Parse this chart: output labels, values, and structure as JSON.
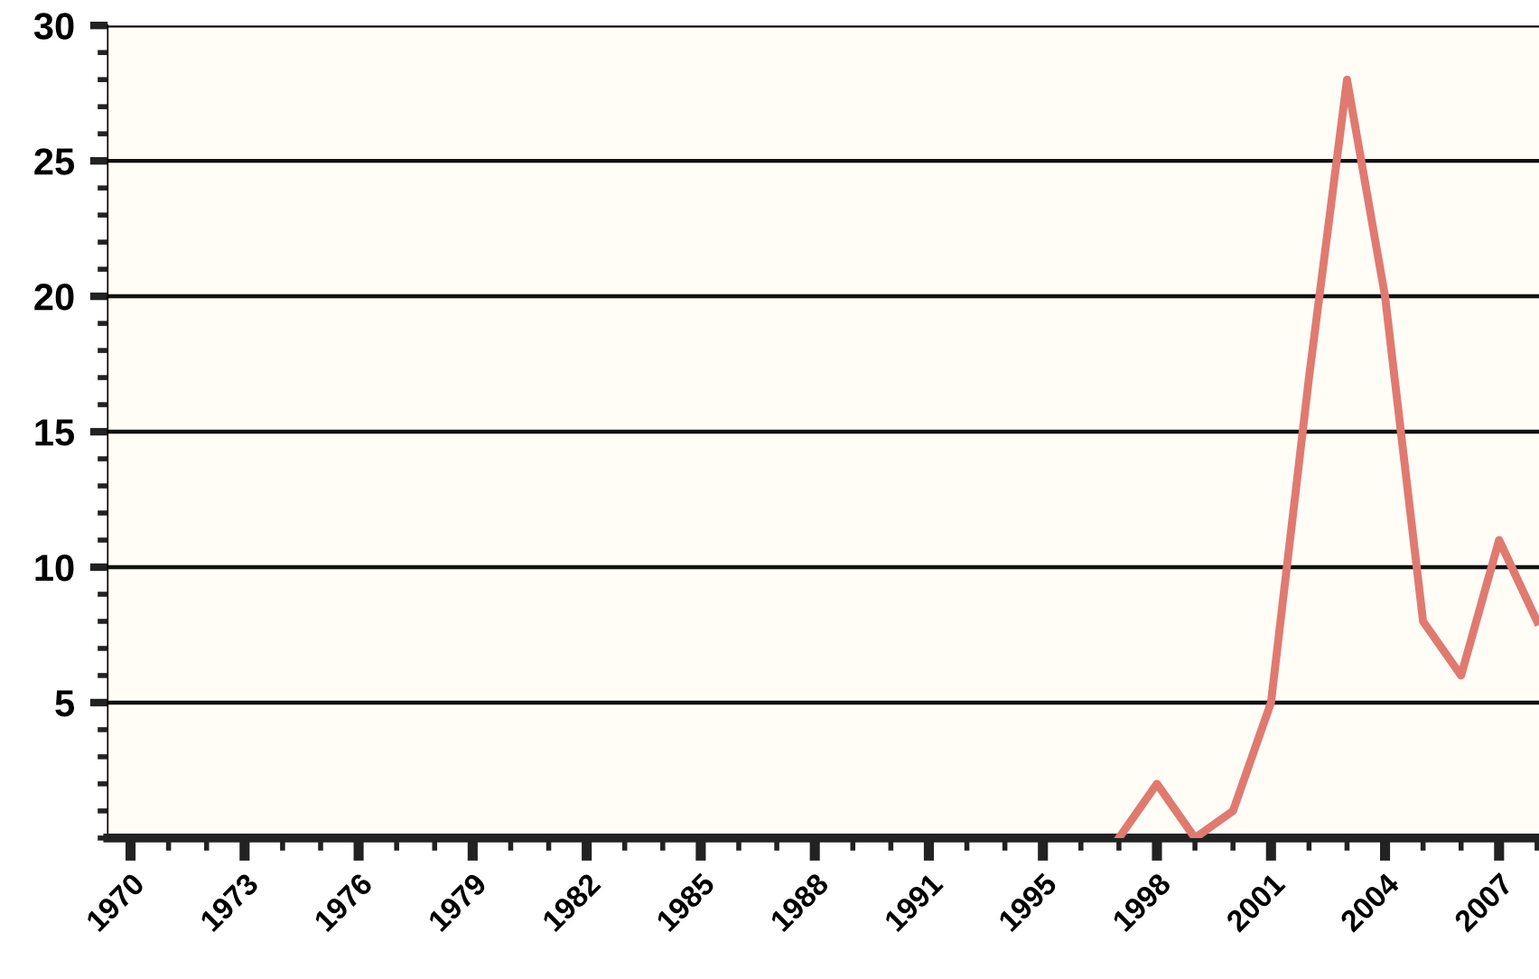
{
  "chart_data": {
    "type": "line",
    "categories": [
      "1970",
      null,
      null,
      "1973",
      null,
      null,
      "1976",
      null,
      null,
      "1979",
      null,
      null,
      "1982",
      null,
      null,
      "1985",
      null,
      null,
      "1988",
      null,
      null,
      "1991",
      null,
      null,
      "1995",
      null,
      null,
      "1998",
      null,
      null,
      "2001",
      null,
      null,
      "2004",
      null,
      null,
      "2007",
      null
    ],
    "series": [
      {
        "color": "#e07a70",
        "values": [
          null,
          null,
          null,
          null,
          null,
          null,
          null,
          null,
          null,
          null,
          null,
          null,
          null,
          null,
          null,
          null,
          null,
          null,
          null,
          null,
          null,
          null,
          null,
          null,
          null,
          null,
          0,
          2,
          0,
          1,
          5,
          17,
          28,
          20,
          8,
          6,
          11,
          8
        ]
      }
    ],
    "ylim": [
      0,
      30
    ],
    "yticks": [
      {
        "value": 0,
        "label": null
      },
      {
        "value": 1,
        "label": null
      },
      {
        "value": 2,
        "label": null
      },
      {
        "value": 3,
        "label": null
      },
      {
        "value": 4,
        "label": null
      },
      5,
      {
        "value": 6,
        "label": null
      },
      {
        "value": 7,
        "label": null
      },
      {
        "value": 8,
        "label": null
      },
      {
        "value": 9,
        "label": null
      },
      10,
      {
        "value": 11,
        "label": null
      },
      {
        "value": 12,
        "label": null
      },
      {
        "value": 13,
        "label": null
      },
      {
        "value": 14,
        "label": null
      },
      15,
      {
        "value": 16,
        "label": null
      },
      {
        "value": 17,
        "label": null
      },
      {
        "value": 18,
        "label": null
      },
      {
        "value": 19,
        "label": null
      },
      20,
      {
        "value": 21,
        "label": null
      },
      {
        "value": 22,
        "label": null
      },
      {
        "value": 23,
        "label": null
      },
      {
        "value": 24,
        "label": null
      },
      25,
      {
        "value": 26,
        "label": null
      },
      {
        "value": 27,
        "label": null
      },
      {
        "value": 28,
        "label": null
      },
      {
        "value": 29,
        "label": null
      },
      30
    ],
    "grid": "y",
    "marker": "none",
    "line_style": "solid"
  }
}
